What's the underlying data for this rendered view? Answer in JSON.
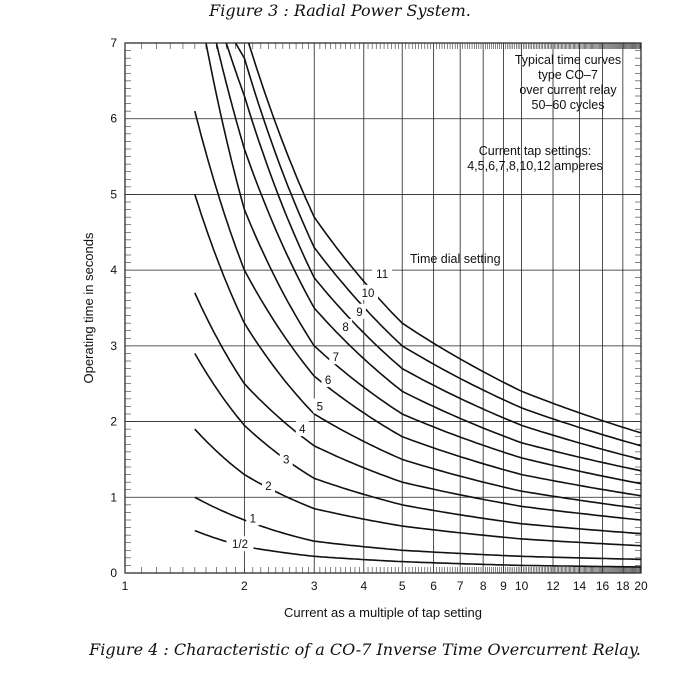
{
  "captions": {
    "top": "Figure 3 : Radial Power System.",
    "bottom": "Figure 4 : Characteristic of a CO-7 Inverse Time Overcurrent Relay."
  },
  "chart_data": {
    "type": "line",
    "title": "",
    "xlabel": "Current as a multiple of tap setting",
    "ylabel": "Operating time in seconds",
    "x_scale": "log",
    "xlim": [
      1,
      20
    ],
    "ylim": [
      0,
      7
    ],
    "x_ticks": [
      1,
      2,
      3,
      4,
      5,
      6,
      7,
      8,
      9,
      10,
      12,
      14,
      16,
      18,
      20
    ],
    "x_tick_labels": [
      "1",
      "2",
      "3",
      "4",
      "5",
      "6",
      "7",
      "8",
      "9",
      "10",
      "12",
      "14",
      "16",
      "18",
      "20"
    ],
    "y_ticks": [
      0,
      1,
      2,
      3,
      4,
      5,
      6,
      7
    ],
    "y_tick_labels": [
      "0",
      "1",
      "2",
      "3",
      "4",
      "5",
      "6",
      "7"
    ],
    "grid": true,
    "annotations": {
      "relay_note": [
        "Typical time curves",
        "type CO–7",
        "over current relay",
        "50–60 cycles"
      ],
      "tap_note": [
        "Current tap settings:",
        "4,5,6,7,8,10,12 amperes"
      ],
      "dial_note": "Time dial setting"
    },
    "series": [
      {
        "name": "1/2",
        "x": [
          1.5,
          2,
          3,
          5,
          10,
          20
        ],
        "y": [
          0.56,
          0.35,
          0.22,
          0.15,
          0.1,
          0.08
        ]
      },
      {
        "name": "1",
        "x": [
          1.5,
          2,
          3,
          5,
          10,
          20
        ],
        "y": [
          1.0,
          0.7,
          0.42,
          0.3,
          0.22,
          0.18
        ]
      },
      {
        "name": "2",
        "x": [
          1.5,
          2,
          3,
          5,
          10,
          20
        ],
        "y": [
          1.9,
          1.3,
          0.85,
          0.62,
          0.45,
          0.36
        ]
      },
      {
        "name": "3",
        "x": [
          1.5,
          2,
          3,
          5,
          10,
          20
        ],
        "y": [
          2.9,
          1.95,
          1.25,
          0.9,
          0.65,
          0.52
        ]
      },
      {
        "name": "4",
        "x": [
          1.5,
          2,
          3,
          5,
          10,
          20
        ],
        "y": [
          3.7,
          2.5,
          1.68,
          1.2,
          0.88,
          0.7
        ]
      },
      {
        "name": "5",
        "x": [
          1.5,
          2,
          3,
          5,
          10,
          20
        ],
        "y": [
          5.0,
          3.3,
          2.1,
          1.5,
          1.08,
          0.85
        ]
      },
      {
        "name": "6",
        "x": [
          1.5,
          2,
          3,
          5,
          10,
          20
        ],
        "y": [
          6.1,
          4.0,
          2.6,
          1.8,
          1.3,
          1.02
        ]
      },
      {
        "name": "7",
        "x": [
          1.6,
          2,
          3,
          5,
          10,
          20
        ],
        "y": [
          7.0,
          4.8,
          3.0,
          2.1,
          1.52,
          1.18
        ]
      },
      {
        "name": "8",
        "x": [
          1.7,
          2,
          3,
          5,
          10,
          20
        ],
        "y": [
          7.0,
          5.6,
          3.5,
          2.4,
          1.72,
          1.35
        ]
      },
      {
        "name": "9",
        "x": [
          1.8,
          2,
          3,
          5,
          10,
          20
        ],
        "y": [
          7.0,
          6.3,
          3.9,
          2.7,
          1.95,
          1.5
        ]
      },
      {
        "name": "10",
        "x": [
          1.9,
          2,
          3,
          5,
          10,
          20
        ],
        "y": [
          7.0,
          6.8,
          4.3,
          3.0,
          2.18,
          1.68
        ]
      },
      {
        "name": "11",
        "x": [
          2.05,
          3,
          5,
          10,
          20
        ],
        "y": [
          7.0,
          4.7,
          3.3,
          2.4,
          1.85
        ]
      }
    ],
    "curve_labels": [
      {
        "text": "1/2",
        "x": 1.95,
        "y": 0.38
      },
      {
        "text": "1",
        "x": 2.1,
        "y": 0.72
      },
      {
        "text": "2",
        "x": 2.3,
        "y": 1.15
      },
      {
        "text": "3",
        "x": 2.55,
        "y": 1.5
      },
      {
        "text": "4",
        "x": 2.8,
        "y": 1.9
      },
      {
        "text": "5",
        "x": 3.1,
        "y": 2.2
      },
      {
        "text": "6",
        "x": 3.25,
        "y": 2.55
      },
      {
        "text": "7",
        "x": 3.4,
        "y": 2.85
      },
      {
        "text": "8",
        "x": 3.6,
        "y": 3.25
      },
      {
        "text": "9",
        "x": 3.9,
        "y": 3.45
      },
      {
        "text": "10",
        "x": 4.1,
        "y": 3.7
      },
      {
        "text": "11",
        "x": 4.45,
        "y": 3.95
      }
    ]
  }
}
